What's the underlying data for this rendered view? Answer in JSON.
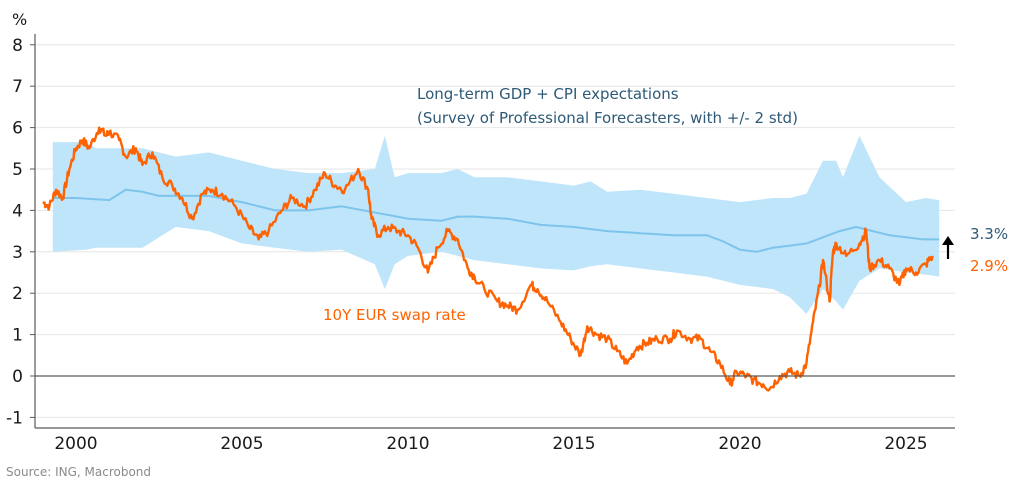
{
  "chart_data": {
    "type": "line",
    "title": "",
    "unit_label": "%",
    "xlabel": "",
    "ylabel": "%",
    "xlim": [
      1999.0,
      2026.65
    ],
    "ylim": [
      -1.25,
      8.3
    ],
    "x_ticks": [
      2000,
      2005,
      2010,
      2015,
      2020,
      2025
    ],
    "x_tick_labels": [
      "2000",
      "2005",
      "2010",
      "2015",
      "2020",
      "2025"
    ],
    "y_ticks": [
      -1,
      0,
      1,
      2,
      3,
      4,
      5,
      6,
      7,
      8
    ],
    "y_tick_labels": [
      "-1",
      "0",
      "1",
      "2",
      "3",
      "4",
      "5",
      "6",
      "7",
      "8"
    ],
    "grid": true,
    "zero_line": true,
    "colors": {
      "band": "#bfe5fa",
      "mean": "#7dc4ec",
      "swap": "#ff6200",
      "annotation_blue": "#2e5a77",
      "arrow": "#000000"
    },
    "annotations": {
      "band_label_line1": "Long-term GDP + CPI expectations",
      "band_label_line2": "(Survey of Professional Forecasters, with +/- 2 std)",
      "swap_label": "10Y EUR swap rate",
      "end_value_mean": "3.3%",
      "end_value_swap": "2.9%"
    },
    "series": [
      {
        "name": "Long-term GDP + CPI expectations (mean)",
        "kind": "line",
        "x": [
          1999.3,
          2000.0,
          2001.0,
          2001.5,
          2002.0,
          2002.5,
          2003.0,
          2004.0,
          2005.0,
          2006.0,
          2007.0,
          2008.0,
          2009.0,
          2010.0,
          2011.0,
          2011.5,
          2012.0,
          2013.0,
          2014.0,
          2015.0,
          2016.0,
          2017.0,
          2018.0,
          2019.0,
          2019.5,
          2020.0,
          2020.5,
          2021.0,
          2022.0,
          2022.5,
          2023.0,
          2023.5,
          2024.0,
          2024.5,
          2025.0,
          2025.5,
          2026.0
        ],
        "values": [
          4.3,
          4.3,
          4.25,
          4.5,
          4.45,
          4.35,
          4.35,
          4.35,
          4.2,
          4.0,
          4.0,
          4.1,
          3.95,
          3.8,
          3.75,
          3.85,
          3.85,
          3.8,
          3.65,
          3.6,
          3.5,
          3.45,
          3.4,
          3.4,
          3.25,
          3.05,
          3.0,
          3.1,
          3.2,
          3.35,
          3.5,
          3.6,
          3.5,
          3.4,
          3.35,
          3.3,
          3.3
        ]
      },
      {
        "name": "+/- 2 std band",
        "kind": "band",
        "x": [
          1999.3,
          2000.3,
          2000.6,
          2002.0,
          2003.0,
          2004.0,
          2005.0,
          2006.0,
          2007.0,
          2008.0,
          2009.0,
          2009.3,
          2009.6,
          2010.0,
          2011.0,
          2011.5,
          2012.0,
          2013.0,
          2014.0,
          2015.0,
          2015.5,
          2016.0,
          2017.0,
          2018.0,
          2019.0,
          2020.0,
          2021.0,
          2021.5,
          2022.0,
          2022.5,
          2022.9,
          2023.1,
          2023.6,
          2024.2,
          2025.0,
          2025.6,
          2026.0
        ],
        "upper": [
          5.65,
          5.65,
          5.5,
          5.5,
          5.3,
          5.4,
          5.2,
          5.0,
          4.9,
          4.9,
          5.0,
          5.8,
          4.8,
          4.9,
          4.9,
          5.0,
          4.8,
          4.8,
          4.7,
          4.6,
          4.7,
          4.45,
          4.5,
          4.4,
          4.3,
          4.2,
          4.3,
          4.3,
          4.4,
          5.2,
          5.2,
          4.8,
          5.8,
          4.8,
          4.2,
          4.3,
          4.25
        ],
        "lower": [
          3.0,
          3.05,
          3.1,
          3.1,
          3.6,
          3.5,
          3.2,
          3.1,
          3.0,
          3.05,
          2.7,
          2.1,
          2.7,
          2.9,
          3.0,
          2.9,
          2.8,
          2.7,
          2.6,
          2.55,
          2.65,
          2.7,
          2.6,
          2.5,
          2.4,
          2.2,
          2.1,
          1.9,
          1.5,
          2.1,
          1.8,
          1.6,
          2.3,
          2.6,
          2.5,
          2.45,
          2.4
        ]
      },
      {
        "name": "10Y EUR swap rate",
        "kind": "line",
        "x": [
          1999.0,
          1999.2,
          1999.4,
          1999.6,
          1999.8,
          2000.0,
          2000.2,
          2000.4,
          2000.7,
          2000.9,
          2001.0,
          2001.3,
          2001.5,
          2001.8,
          2002.0,
          2002.3,
          2002.6,
          2002.9,
          2003.2,
          2003.5,
          2003.8,
          2004.1,
          2004.4,
          2004.8,
          2005.2,
          2005.5,
          2005.8,
          2006.2,
          2006.5,
          2006.9,
          2007.2,
          2007.5,
          2007.8,
          2008.1,
          2008.5,
          2008.8,
          2008.9,
          2009.1,
          2009.4,
          2009.7,
          2010.0,
          2010.3,
          2010.6,
          2010.9,
          2011.2,
          2011.5,
          2011.8,
          2012.0,
          2012.3,
          2012.7,
          2013.0,
          2013.3,
          2013.7,
          2013.9,
          2014.2,
          2014.6,
          2014.9,
          2015.2,
          2015.4,
          2015.7,
          2016.0,
          2016.3,
          2016.6,
          2016.9,
          2017.2,
          2017.5,
          2017.9,
          2018.1,
          2018.5,
          2018.8,
          2019.1,
          2019.4,
          2019.7,
          2019.9,
          2020.2,
          2020.4,
          2020.7,
          2020.9,
          2021.2,
          2021.5,
          2021.8,
          2022.0,
          2022.2,
          2022.4,
          2022.5,
          2022.7,
          2022.8,
          2022.9,
          2023.2,
          2023.6,
          2023.8,
          2023.9,
          2024.2,
          2024.5,
          2024.8,
          2025.0,
          2025.3,
          2025.6,
          2025.8
        ],
        "values": [
          4.2,
          4.1,
          4.5,
          4.3,
          5.0,
          5.5,
          5.7,
          5.5,
          6.0,
          5.8,
          5.9,
          5.7,
          5.3,
          5.5,
          5.1,
          5.4,
          4.8,
          4.6,
          4.3,
          3.8,
          4.4,
          4.5,
          4.4,
          4.1,
          3.6,
          3.3,
          3.5,
          4.0,
          4.3,
          4.1,
          4.5,
          4.9,
          4.6,
          4.5,
          5.0,
          4.5,
          3.8,
          3.4,
          3.6,
          3.5,
          3.4,
          3.1,
          2.5,
          3.1,
          3.5,
          3.3,
          2.6,
          2.4,
          2.1,
          1.8,
          1.7,
          1.6,
          2.2,
          2.1,
          1.8,
          1.3,
          0.9,
          0.5,
          1.2,
          1.0,
          0.9,
          0.6,
          0.3,
          0.7,
          0.8,
          0.9,
          0.9,
          1.1,
          0.9,
          0.9,
          0.6,
          0.3,
          -0.2,
          0.1,
          0.0,
          -0.1,
          -0.2,
          -0.3,
          0.0,
          0.1,
          0.0,
          0.3,
          1.3,
          2.2,
          2.8,
          1.8,
          3.0,
          3.2,
          2.9,
          3.2,
          3.5,
          2.6,
          2.8,
          2.6,
          2.2,
          2.6,
          2.5,
          2.7,
          2.9
        ]
      }
    ]
  },
  "source": "Source: ING, Macrobond"
}
